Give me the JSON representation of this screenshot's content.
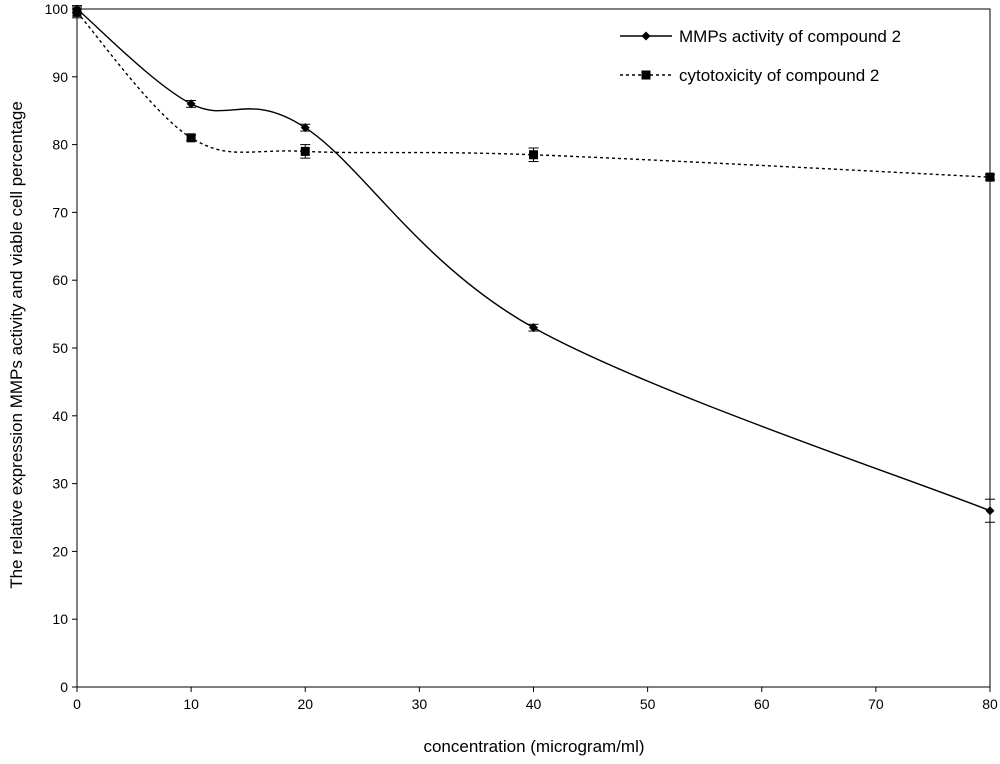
{
  "chart_data": {
    "type": "line",
    "title": "",
    "xlabel": "concentration (microgram/ml)",
    "ylabel": "The relative expression MMPs activity and viable cell percentage",
    "xlim": [
      0,
      80
    ],
    "ylim": [
      0,
      100
    ],
    "x_ticks": [
      0,
      10,
      20,
      30,
      40,
      50,
      60,
      70,
      80
    ],
    "y_ticks": [
      0,
      10,
      20,
      30,
      40,
      50,
      60,
      70,
      80,
      90,
      100
    ],
    "x_scale": "linear",
    "grid": false,
    "legend_position": "top-right",
    "series": [
      {
        "name": "MMPs activity of compound 2",
        "line_style": "solid",
        "marker": "diamond",
        "color": "#000000",
        "x": [
          0,
          10,
          20,
          40,
          80
        ],
        "y": [
          100,
          86,
          82.5,
          53,
          26
        ],
        "error": [
          0.5,
          0.5,
          0.5,
          0.5,
          1.7
        ]
      },
      {
        "name": "cytotoxicity of compound 2",
        "line_style": "dotted",
        "marker": "square",
        "color": "#000000",
        "x": [
          0,
          10,
          20,
          40,
          80
        ],
        "y": [
          99.5,
          81,
          79,
          78.5,
          75.2
        ],
        "error": [
          0.8,
          0.4,
          1,
          1,
          0.4
        ]
      }
    ]
  }
}
